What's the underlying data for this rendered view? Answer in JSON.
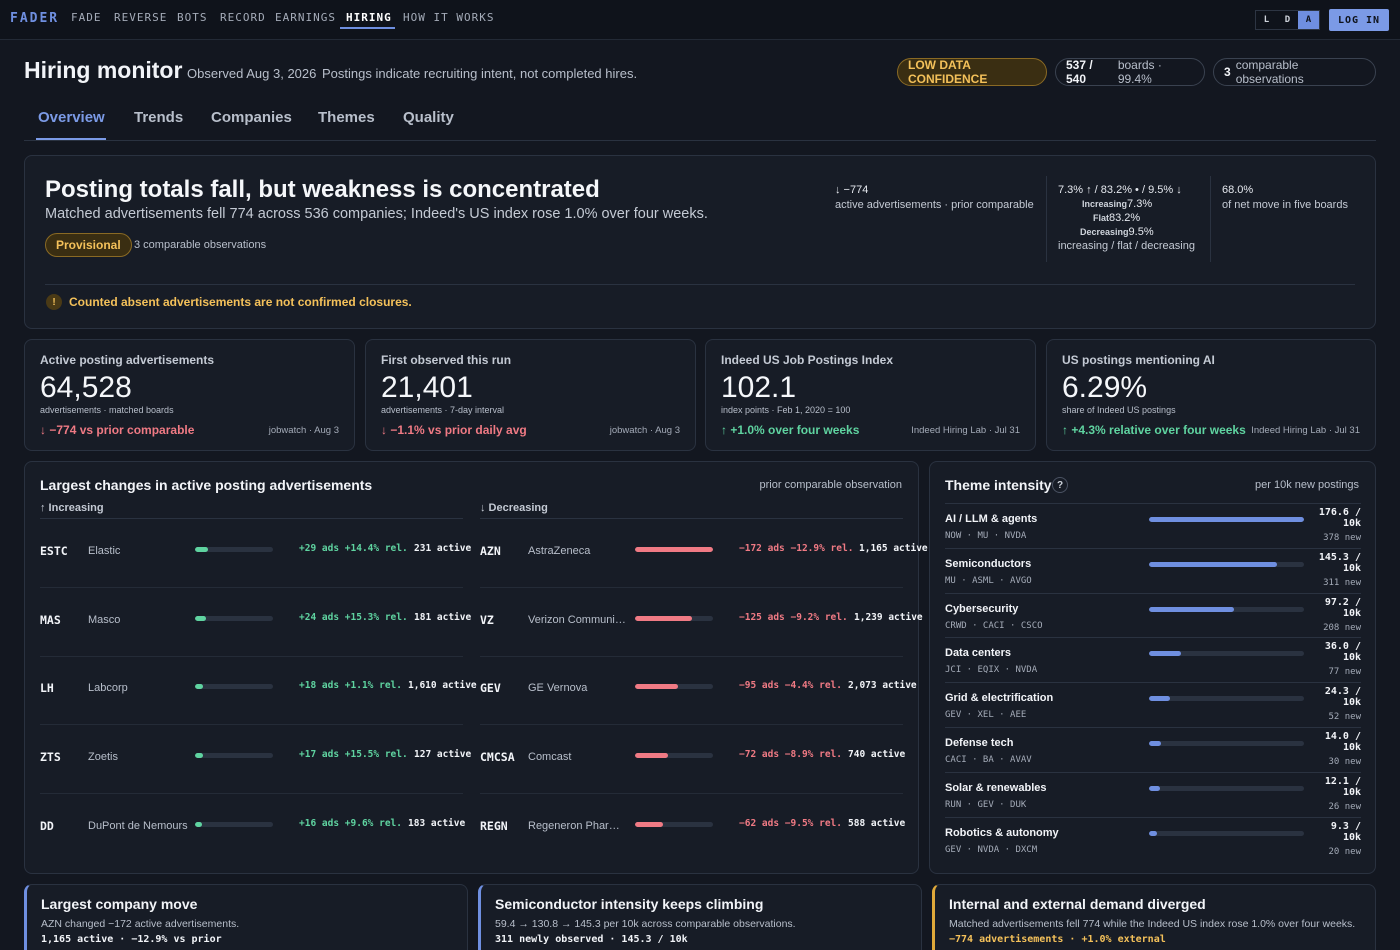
{
  "nav": {
    "brand": "FADER",
    "items": [
      "FADE",
      "REVERSE",
      "BOTS",
      "RECORD",
      "EARNINGS",
      "HIRING",
      "HOW IT WORKS"
    ],
    "theme": [
      "L",
      "D",
      "A"
    ],
    "login": "LOG IN"
  },
  "header": {
    "title": "Hiring monitor",
    "observed": "Observed Aug 3, 2026",
    "intent": "Postings indicate recruiting intent, not completed hires.",
    "confidence": "LOW DATA CONFIDENCE",
    "boards_count": "537 / 540",
    "boards_suffix": "boards · 99.4%",
    "obs_count": "3",
    "obs_suffix": "comparable observations"
  },
  "tabs": [
    "Overview",
    "Trends",
    "Companies",
    "Themes",
    "Quality"
  ],
  "hero": {
    "title": "Posting totals fall, but weakness is concentrated",
    "subtitle": "Matched advertisements fell 774 across 536 companies; Indeed's US index rose 1.0% over four weeks.",
    "badge": "Provisional",
    "badge_note": "3 comparable observations",
    "stat1_value": "↓ −774",
    "stat1_label": "active advertisements · prior comparable",
    "stat2_value": "7.3% ↑ / 83.2% • / 9.5% ↓",
    "stat2_inc_label": "Increasing",
    "stat2_inc_value": "7.3%",
    "stat2_flat_label": "Flat",
    "stat2_flat_value": "83.2%",
    "stat2_dec_label": "Decreasing",
    "stat2_dec_value": "9.5%",
    "stat2_label": "increasing / flat / decreasing",
    "stat3_value": "68.0%",
    "stat3_label": "of net move in five boards",
    "warning": "Counted absent advertisements are not confirmed closures."
  },
  "metrics": [
    {
      "label": "Active posting advertisements",
      "value": "64,528",
      "unit": "advertisements · matched boards",
      "delta": "↓ −774 vs prior comparable",
      "source": "jobwatch · Aug 3",
      "dir": "down"
    },
    {
      "label": "First observed this run",
      "value": "21,401",
      "unit": "advertisements · 7-day interval",
      "delta": "↓ −1.1% vs prior daily avg",
      "source": "jobwatch · Aug 3",
      "dir": "down"
    },
    {
      "label": "Indeed US Job Postings Index",
      "value": "102.1",
      "unit": "index points · Feb 1, 2020 = 100",
      "delta": "↑ +1.0% over four weeks",
      "source": "Indeed Hiring Lab · Jul 31",
      "dir": "up"
    },
    {
      "label": "US postings mentioning AI",
      "value": "6.29%",
      "unit": "share of Indeed US postings",
      "delta": "↑ +4.3% relative over four weeks",
      "source": "Indeed Hiring Lab · Jul 31",
      "dir": "up"
    }
  ],
  "changes": {
    "title": "Largest changes in active posting advertisements",
    "note": "prior comparable observation",
    "inc_head": "↑ Increasing",
    "dec_head": "↓ Decreasing",
    "increasing": [
      {
        "ticker": "ESTC",
        "name": "Elastic",
        "ads": "+29 ads",
        "rel": "+14.4% rel.",
        "active": "231 active",
        "magnitude": 29
      },
      {
        "ticker": "MAS",
        "name": "Masco",
        "ads": "+24 ads",
        "rel": "+15.3% rel.",
        "active": "181 active",
        "magnitude": 24
      },
      {
        "ticker": "LH",
        "name": "Labcorp",
        "ads": "+18 ads",
        "rel": "+1.1% rel.",
        "active": "1,610 active",
        "magnitude": 18
      },
      {
        "ticker": "ZTS",
        "name": "Zoetis",
        "ads": "+17 ads",
        "rel": "+15.5% rel.",
        "active": "127 active",
        "magnitude": 17
      },
      {
        "ticker": "DD",
        "name": "DuPont de Nemours",
        "ads": "+16 ads",
        "rel": "+9.6% rel.",
        "active": "183 active",
        "magnitude": 16
      }
    ],
    "decreasing": [
      {
        "ticker": "AZN",
        "name": "AstraZeneca",
        "ads": "−172 ads",
        "rel": "−12.9% rel.",
        "active": "1,165 active",
        "magnitude": 172
      },
      {
        "ticker": "VZ",
        "name": "Verizon Communications",
        "ads": "−125 ads",
        "rel": "−9.2% rel.",
        "active": "1,239 active",
        "magnitude": 125
      },
      {
        "ticker": "GEV",
        "name": "GE Vernova",
        "ads": "−95 ads",
        "rel": "−4.4% rel.",
        "active": "2,073 active",
        "magnitude": 95
      },
      {
        "ticker": "CMCSA",
        "name": "Comcast",
        "ads": "−72 ads",
        "rel": "−8.9% rel.",
        "active": "740 active",
        "magnitude": 72
      },
      {
        "ticker": "REGN",
        "name": "Regeneron Pharmaceuticals",
        "ads": "−62 ads",
        "rel": "−9.5% rel.",
        "active": "588 active",
        "magnitude": 62
      }
    ]
  },
  "themes": {
    "title": "Theme intensity",
    "help": "?",
    "note": "per 10k new postings",
    "unit": "/ 10k",
    "items": [
      {
        "name": "AI / LLM & agents",
        "tickers": "NOW · MU · NVDA",
        "value": 176.6,
        "new": "378 new"
      },
      {
        "name": "Semiconductors",
        "tickers": "MU · ASML · AVGO",
        "value": 145.3,
        "new": "311 new"
      },
      {
        "name": "Cybersecurity",
        "tickers": "CRWD · CACI · CSCO",
        "value": 97.2,
        "new": "208 new"
      },
      {
        "name": "Data centers",
        "tickers": "JCI · EQIX · NVDA",
        "value": 36.0,
        "new": "77 new"
      },
      {
        "name": "Grid & electrification",
        "tickers": "GEV · XEL · AEE",
        "value": 24.3,
        "new": "52 new"
      },
      {
        "name": "Defense tech",
        "tickers": "CACI · BA · AVAV",
        "value": 14.0,
        "new": "30 new"
      },
      {
        "name": "Solar & renewables",
        "tickers": "RUN · GEV · DUK",
        "value": 12.1,
        "new": "26 new"
      },
      {
        "name": "Robotics & autonomy",
        "tickers": "GEV · NVDA · DXCM",
        "value": 9.3,
        "new": "20 new"
      }
    ]
  },
  "insights": [
    {
      "title": "Largest company move",
      "body": "AZN changed −172 active advertisements.",
      "foot": "1,165 active · −12.9% vs prior",
      "accent": "#6f8fe0"
    },
    {
      "title": "Semiconductor intensity keeps climbing",
      "body": "59.4 → 130.8 → 145.3 per 10k across comparable observations.",
      "foot": "311 newly observed · 145.3 / 10k",
      "accent": "#6f8fe0"
    },
    {
      "title": "Internal and external demand diverged",
      "body": "Matched advertisements fell 774 while the Indeed US index rose 1.0% over four weeks.",
      "foot": "−774 advertisements · +1.0% external",
      "accent": "#e0a93a"
    }
  ],
  "colors": {
    "accent": "#6f8fe0",
    "up": "#5fd3a0",
    "down": "#f07a84",
    "warn": "#f4c15a"
  }
}
